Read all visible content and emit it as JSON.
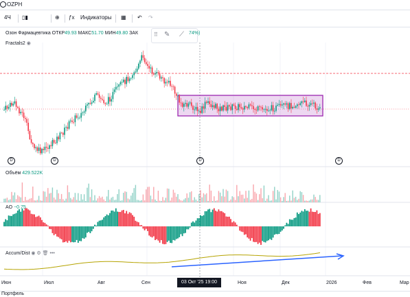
{
  "search": {
    "value": "OZPH"
  },
  "toolbar": {
    "interval": "4Ч",
    "indicators_label": "Индикаторы"
  },
  "legend": {
    "name": "Озон Фармацевтика",
    "open_label": "ОТКР",
    "open": "49.93",
    "high_label": "МАКС",
    "high": "51.70",
    "low_label": "МИН",
    "low": "49.80",
    "close_label": "ЗАК",
    "change_tail": "74%)"
  },
  "indicators": {
    "fractals": "Fractals2",
    "volume_label": "Объём",
    "volume_value": "429.522K",
    "ao_label": "AO",
    "ao_value": "−0.75",
    "accum_label": "Accum/Dist"
  },
  "events": {
    "dividend_marker": "D"
  },
  "x_axis": {
    "labels": [
      "Июн",
      "Июл",
      "Авг",
      "Сен",
      "Ноя",
      "Дек",
      "2026",
      "Фев",
      "Мар"
    ],
    "crosshair_label": "03 Окт '25   19:00"
  },
  "bottom": {
    "tab": "Портфель"
  },
  "colors": {
    "up": "#089981",
    "down": "#f23645",
    "range_box": "#9c27b0",
    "trend": "#2962ff",
    "accum_line": "#b5a300"
  },
  "chart_data": {
    "type": "candlestick",
    "symbol": "OZPH",
    "interval": "4Ч",
    "last_bar": {
      "open": 49.93,
      "high": 51.7,
      "low": 49.8
    },
    "indicators": [
      "Fractals2",
      "Объём",
      "AO",
      "Accum/Dist"
    ]
  }
}
